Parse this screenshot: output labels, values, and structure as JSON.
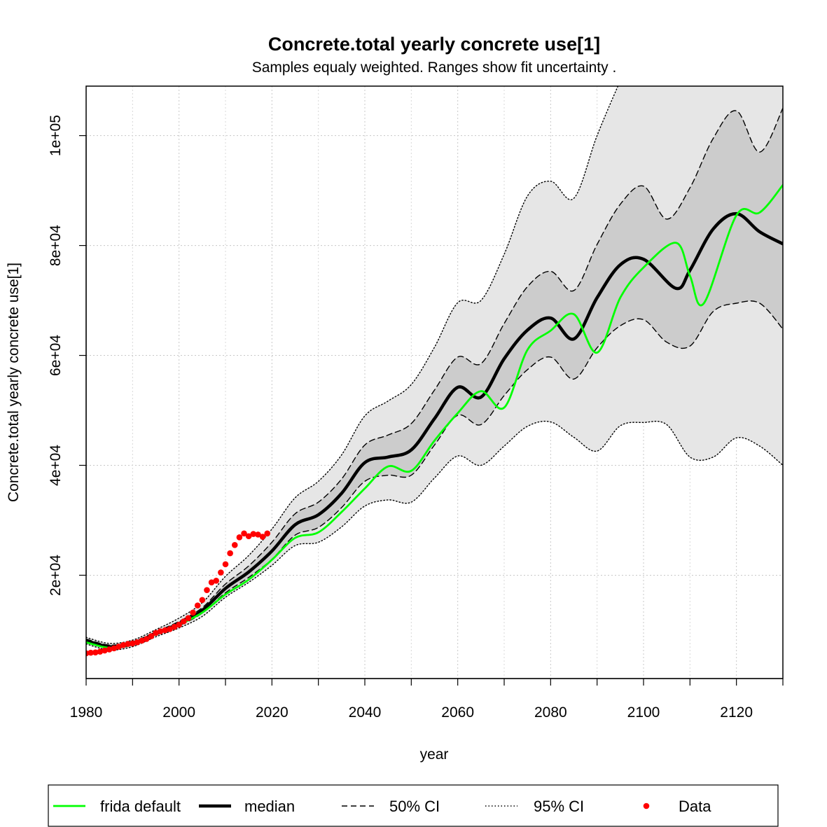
{
  "chart_data": {
    "type": "line",
    "title": "Concrete.total yearly concrete use[1]",
    "subtitle": "Samples equaly weighted. Ranges show  fit uncertainty .",
    "xlabel": "year",
    "ylabel": "Concrete.total yearly concrete use[1]",
    "xlim": [
      1980,
      2130
    ],
    "ylim": [
      1200,
      109000
    ],
    "x_ticks": [
      1980,
      2000,
      2020,
      2040,
      2060,
      2080,
      2100,
      2120
    ],
    "x_tick_labels": [
      "1980",
      "2000",
      "2020",
      "2040",
      "2060",
      "2080",
      "2100",
      "2120"
    ],
    "y_ticks": [
      20000,
      40000,
      60000,
      80000,
      100000
    ],
    "y_tick_labels": [
      "2e+04",
      "4e+04",
      "6e+04",
      "8e+04",
      "1e+05"
    ],
    "grid": true,
    "legend_position": "bottom",
    "legend": [
      {
        "label": "frida default",
        "style": "solid-line",
        "color": "#00ff00"
      },
      {
        "label": "median",
        "style": "thick-solid-line",
        "color": "#000000"
      },
      {
        "label": "50% CI",
        "style": "dashed-line",
        "color": "#000000"
      },
      {
        "label": "95% CI",
        "style": "dotted-line",
        "color": "#000000"
      },
      {
        "label": "Data",
        "style": "point",
        "color": "#ff0000"
      }
    ],
    "ci95_fill": "#e6e6e6",
    "ci50_fill": "#cccccc",
    "series": [
      {
        "name": "frida default",
        "color": "#00ff00",
        "x": [
          1980,
          1985,
          1990,
          1995,
          2000,
          2005,
          2010,
          2015,
          2020,
          2025,
          2030,
          2035,
          2040,
          2045,
          2050,
          2055,
          2060,
          2065,
          2070,
          2075,
          2080,
          2085,
          2090,
          2095,
          2100,
          2107,
          2110,
          2113,
          2120,
          2125,
          2130
        ],
        "values": [
          7800,
          6800,
          7500,
          9300,
          11000,
          13200,
          16500,
          19200,
          22800,
          26800,
          27800,
          31500,
          35800,
          39800,
          39000,
          44500,
          49500,
          53500,
          50500,
          61000,
          64500,
          67500,
          60500,
          70500,
          76000,
          80500,
          74500,
          69500,
          85500,
          86000,
          91000
        ]
      },
      {
        "name": "median",
        "color": "#000000",
        "x": [
          1980,
          1985,
          1990,
          1995,
          2000,
          2005,
          2010,
          2015,
          2020,
          2025,
          2030,
          2035,
          2040,
          2045,
          2050,
          2055,
          2060,
          2065,
          2070,
          2075,
          2080,
          2085,
          2090,
          2095,
          2100,
          2107,
          2110,
          2115,
          2120,
          2125,
          2130
        ],
        "values": [
          8100,
          7000,
          7600,
          9400,
          11200,
          13600,
          17600,
          20600,
          24400,
          29200,
          31000,
          34900,
          40500,
          41500,
          42800,
          48500,
          54200,
          52400,
          59400,
          64600,
          66800,
          63000,
          70500,
          76500,
          77500,
          72200,
          75500,
          83000,
          85800,
          82500,
          80300
        ]
      },
      {
        "name": "50% CI upper",
        "color": "#000000",
        "x": [
          1980,
          1985,
          1990,
          1995,
          2000,
          2005,
          2010,
          2015,
          2020,
          2025,
          2030,
          2035,
          2040,
          2045,
          2050,
          2055,
          2060,
          2065,
          2070,
          2075,
          2080,
          2085,
          2090,
          2095,
          2100,
          2105,
          2110,
          2115,
          2120,
          2125,
          2130
        ],
        "values": [
          8400,
          7300,
          7900,
          9700,
          11600,
          14100,
          18400,
          21700,
          26000,
          31200,
          33300,
          37500,
          43700,
          45500,
          47600,
          53700,
          59700,
          58500,
          65800,
          72500,
          75300,
          71800,
          80200,
          87500,
          90800,
          84800,
          90500,
          99500,
          104500,
          97000,
          105000
        ]
      },
      {
        "name": "50% CI lower",
        "color": "#000000",
        "x": [
          1980,
          1985,
          1990,
          1995,
          2000,
          2005,
          2010,
          2015,
          2020,
          2025,
          2030,
          2035,
          2040,
          2045,
          2050,
          2055,
          2060,
          2065,
          2070,
          2075,
          2080,
          2085,
          2090,
          2095,
          2100,
          2105,
          2110,
          2115,
          2120,
          2125,
          2130
        ],
        "values": [
          7800,
          6700,
          7300,
          9100,
          10800,
          13100,
          16800,
          19600,
          22900,
          27300,
          28700,
          32300,
          37100,
          38200,
          38200,
          43700,
          49100,
          47400,
          52700,
          57400,
          59700,
          55700,
          61400,
          65400,
          66500,
          62400,
          61700,
          68000,
          69500,
          69500,
          64800
        ]
      },
      {
        "name": "95% CI upper",
        "color": "#000000",
        "x": [
          1980,
          1985,
          1990,
          1995,
          2000,
          2005,
          2010,
          2015,
          2020,
          2025,
          2030,
          2035,
          2040,
          2045,
          2050,
          2055,
          2060,
          2065,
          2070,
          2075,
          2080,
          2085,
          2090,
          2095
        ],
        "values": [
          8700,
          7600,
          8200,
          10100,
          12200,
          15000,
          19800,
          23600,
          28400,
          34100,
          37100,
          41900,
          49000,
          51700,
          54700,
          61500,
          69600,
          70000,
          78400,
          89000,
          91700,
          88600,
          100000,
          110000
        ]
      },
      {
        "name": "95% CI lower",
        "color": "#000000",
        "x": [
          1980,
          1985,
          1990,
          1995,
          2000,
          2005,
          2010,
          2015,
          2020,
          2025,
          2030,
          2035,
          2040,
          2045,
          2050,
          2055,
          2060,
          2065,
          2070,
          2075,
          2080,
          2085,
          2090,
          2095,
          2100,
          2105,
          2110,
          2115,
          2120,
          2125,
          2130
        ],
        "values": [
          7500,
          6400,
          7000,
          8800,
          10400,
          12500,
          16000,
          18700,
          21800,
          25400,
          26000,
          28800,
          32600,
          33700,
          33300,
          37700,
          41700,
          40000,
          43500,
          47100,
          47900,
          45100,
          42600,
          47200,
          47800,
          47400,
          41500,
          41500,
          45000,
          43500,
          40000
        ]
      },
      {
        "name": "Data",
        "color": "#ff0000",
        "x": [
          1980,
          1981,
          1982,
          1983,
          1984,
          1985,
          1986,
          1987,
          1988,
          1989,
          1990,
          1991,
          1992,
          1993,
          1994,
          1995,
          1996,
          1997,
          1998,
          1999,
          2000,
          2001,
          2002,
          2003,
          2004,
          2005,
          2006,
          2007,
          2008,
          2009,
          2010,
          2011,
          2012,
          2013,
          2014,
          2015,
          2016,
          2017,
          2018,
          2019
        ],
        "values": [
          5800,
          5900,
          5950,
          6100,
          6300,
          6500,
          6700,
          7000,
          7300,
          7500,
          7600,
          7800,
          8100,
          8400,
          8900,
          9500,
          9800,
          10000,
          10200,
          10600,
          11000,
          11600,
          12200,
          13200,
          14500,
          15500,
          17300,
          18700,
          19000,
          20500,
          22000,
          24000,
          25500,
          26900,
          27600,
          27100,
          27500,
          27400,
          27000,
          27600
        ]
      }
    ]
  }
}
